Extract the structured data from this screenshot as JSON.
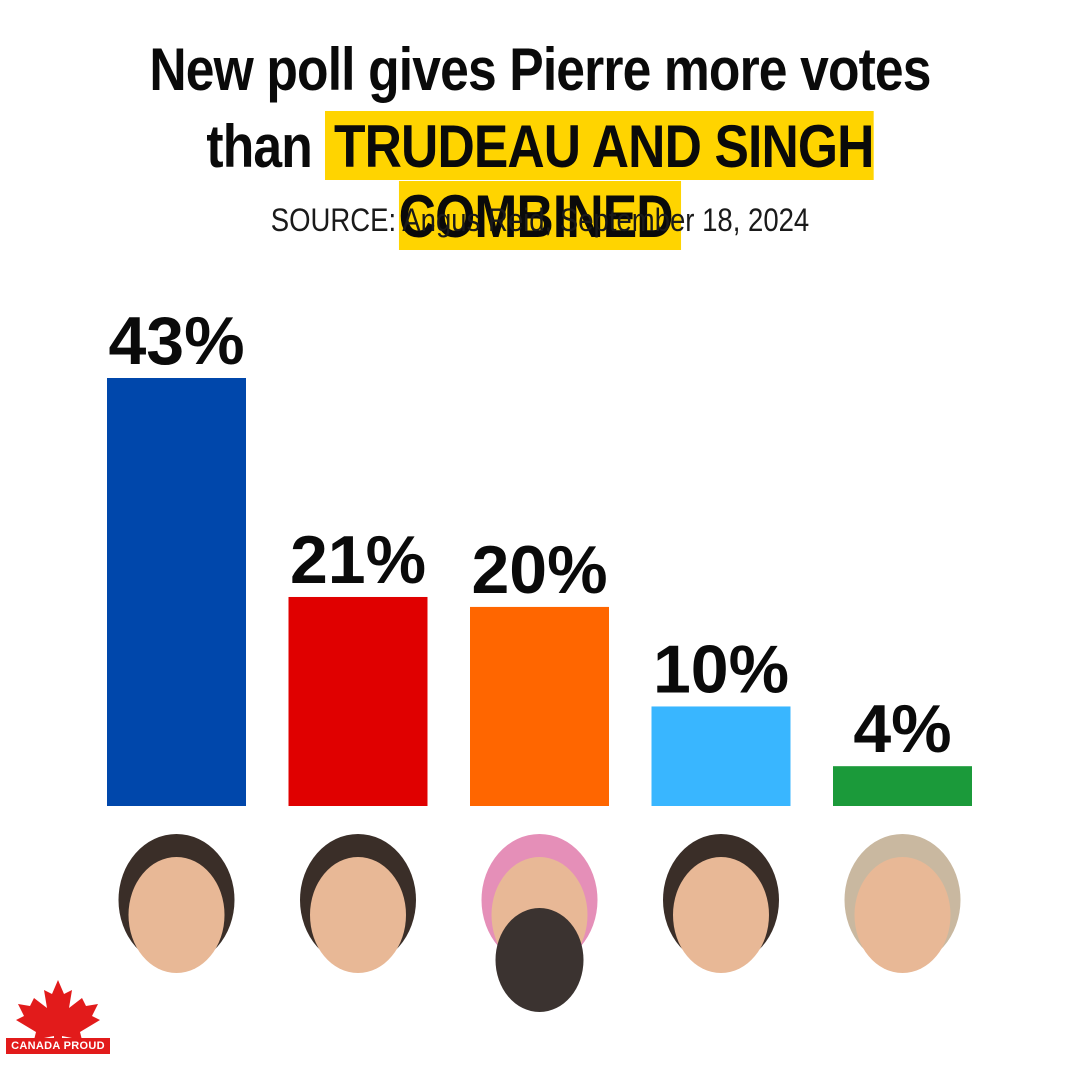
{
  "header": {
    "title_line_1": "New poll gives Pierre more votes",
    "title_line_2_prefix": "than ",
    "title_line_2_highlight": "TRUDEAU AND SINGH COMBINED",
    "subtitle": "SOURCE: Angus Reid, September 18, 2024",
    "highlight_color": "#ffd400"
  },
  "chart_data": {
    "type": "bar",
    "categories": [
      "",
      "",
      "",
      "",
      ""
    ],
    "values": [
      43,
      21,
      20,
      10,
      4
    ],
    "data_labels": [
      "43%",
      "21%",
      "20%",
      "10%",
      "4%"
    ],
    "colors": [
      "#0047ab",
      "#e00000",
      "#ff6600",
      "#39b6ff",
      "#1b9a3a"
    ],
    "title": "New poll gives Pierre more votes than TRUDEAU AND SINGH COMBINED",
    "xlabel": "",
    "ylabel": "",
    "ylim": [
      0,
      43
    ],
    "grid": false,
    "legend": "none"
  },
  "icons": {
    "candidate_portraits": [
      "candidate-1-portrait-icon",
      "candidate-2-portrait-icon",
      "candidate-3-portrait-icon",
      "candidate-4-portrait-icon",
      "candidate-5-portrait-icon"
    ],
    "logo": "maple-leaf-icon"
  },
  "logo": {
    "text": "CANADA PROUD",
    "color": "#e21b1b"
  }
}
